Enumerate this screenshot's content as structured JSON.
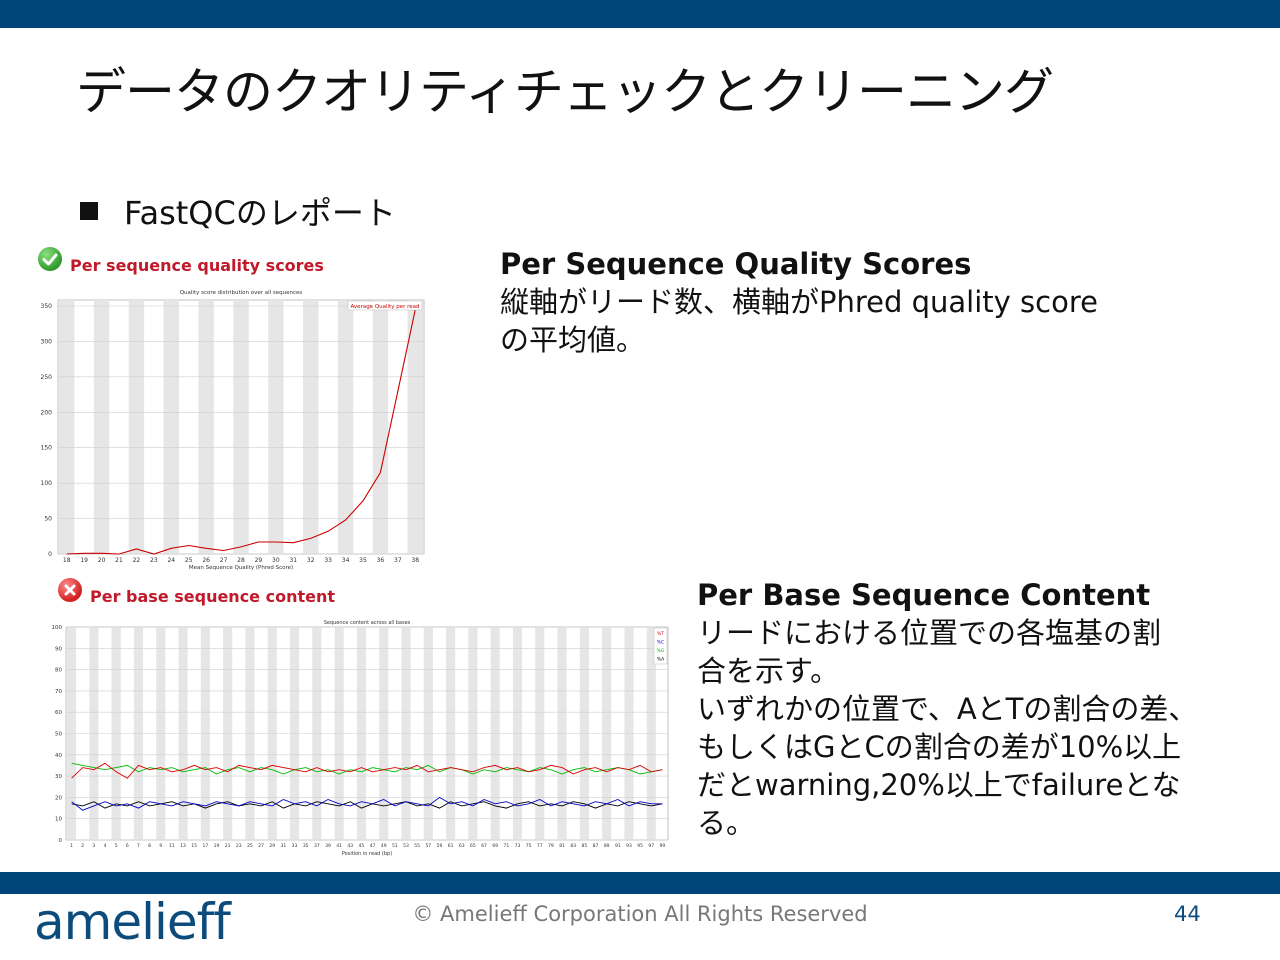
{
  "slide": {
    "title": "データのクオリティチェックとクリーニング",
    "bullet": "FastQCのレポート",
    "copyright": "© Amelieff Corporation All Rights Reserved",
    "page_number": "44",
    "logo_text": "amelieff",
    "colors": {
      "bar": "#00457a",
      "logo": "#0b4c7c",
      "chart_title": "#c0192a"
    }
  },
  "panel1": {
    "header": "Per sequence quality scores",
    "status_icon": "check-icon",
    "description_title": "Per Sequence Quality Scores",
    "description_lines": [
      "縦軸がリード数、横軸がPhred quality score",
      "の平均値。"
    ]
  },
  "panel2": {
    "header": "Per base sequence content",
    "status_icon": "cross-icon",
    "description_title": "Per Base Sequence Content",
    "description_lines": [
      "リードにおける位置での各塩基の割",
      "合を示す。",
      "いずれかの位置で、AとTの割合の差、",
      "もしくはGとCの割合の差が10%以上",
      "だとwarning,20%以上でfailureとな",
      "る。"
    ]
  },
  "chart_data": [
    {
      "type": "line",
      "title": "Quality score distribution over all sequences",
      "xlabel": "Mean Sequence Quality (Phred Score)",
      "ylabel": "",
      "x": [
        18,
        19,
        20,
        21,
        22,
        23,
        24,
        25,
        26,
        27,
        28,
        29,
        30,
        31,
        32,
        33,
        34,
        35,
        36,
        37,
        38
      ],
      "x_ticks": [
        "18",
        "19",
        "20",
        "21",
        "22",
        "23",
        "24",
        "25",
        "26",
        "27",
        "28",
        "29",
        "30",
        "31",
        "32",
        "33",
        "34",
        "35",
        "36",
        "37",
        "38"
      ],
      "y_ticks": [
        "0",
        "50",
        "100",
        "150",
        "200",
        "250",
        "300",
        "350"
      ],
      "ylim": [
        0,
        350
      ],
      "series": [
        {
          "name": "Average Quality per read",
          "color": "#cc0000",
          "values": [
            0,
            1,
            1,
            0,
            7,
            0,
            8,
            12,
            8,
            5,
            10,
            17,
            17,
            16,
            22,
            32,
            48,
            75,
            115,
            230,
            345
          ]
        }
      ],
      "grid": true,
      "legend_position": "top-right"
    },
    {
      "type": "line",
      "title": "Sequence content across all bases",
      "xlabel": "Position in read (bp)",
      "ylabel": "",
      "x_ticks": [
        "1",
        "2",
        "3",
        "4",
        "5",
        "6",
        "7",
        "8",
        "9",
        "11",
        "13",
        "15",
        "17",
        "19",
        "21",
        "23",
        "25",
        "27",
        "29",
        "31",
        "33",
        "35",
        "37",
        "39",
        "41",
        "43",
        "45",
        "47",
        "49",
        "51",
        "53",
        "55",
        "57",
        "59",
        "61",
        "63",
        "65",
        "67",
        "69",
        "71",
        "73",
        "75",
        "77",
        "79",
        "81",
        "83",
        "85",
        "87",
        "89",
        "91",
        "93",
        "95",
        "97",
        "99"
      ],
      "y_ticks": [
        "0",
        "10",
        "20",
        "30",
        "40",
        "50",
        "60",
        "70",
        "80",
        "90",
        "100"
      ],
      "ylim": [
        0,
        100
      ],
      "series": [
        {
          "name": "%T",
          "color": "#dd0000",
          "values": [
            29,
            34,
            33,
            36,
            32,
            29,
            35,
            33,
            34,
            32,
            33,
            35,
            33,
            34,
            32,
            35,
            34,
            33,
            35,
            34,
            33,
            32,
            34,
            32,
            33,
            32,
            34,
            32,
            33,
            34,
            33,
            35,
            32,
            33,
            34,
            33,
            32,
            34,
            35,
            33,
            34,
            32,
            33,
            35,
            34,
            31,
            33,
            34,
            32,
            34,
            33,
            35,
            32,
            33
          ]
        },
        {
          "name": "%C",
          "color": "#0000cc",
          "values": [
            18,
            14,
            16,
            18,
            16,
            17,
            15,
            18,
            17,
            16,
            18,
            17,
            16,
            18,
            17,
            16,
            18,
            17,
            16,
            19,
            17,
            18,
            16,
            19,
            17,
            16,
            18,
            17,
            19,
            16,
            18,
            17,
            16,
            20,
            17,
            18,
            16,
            19,
            17,
            18,
            16,
            17,
            19,
            16,
            18,
            17,
            16,
            18,
            17,
            19,
            16,
            18,
            17,
            17
          ]
        },
        {
          "name": "%G",
          "color": "#00bb00",
          "values": [
            36,
            35,
            34,
            33,
            34,
            35,
            32,
            34,
            33,
            34,
            32,
            33,
            34,
            31,
            33,
            34,
            32,
            34,
            33,
            31,
            33,
            34,
            32,
            33,
            31,
            33,
            32,
            34,
            33,
            32,
            34,
            33,
            35,
            32,
            34,
            33,
            31,
            33,
            32,
            34,
            33,
            32,
            34,
            33,
            31,
            33,
            34,
            32,
            33,
            34,
            33,
            31,
            32,
            33
          ]
        },
        {
          "name": "%A",
          "color": "#000000",
          "values": [
            17,
            16,
            18,
            15,
            17,
            16,
            18,
            16,
            17,
            18,
            16,
            17,
            15,
            17,
            18,
            16,
            17,
            16,
            18,
            15,
            17,
            16,
            18,
            17,
            16,
            18,
            15,
            17,
            16,
            17,
            18,
            16,
            17,
            15,
            18,
            16,
            17,
            18,
            16,
            15,
            17,
            18,
            16,
            17,
            16,
            18,
            17,
            15,
            17,
            16,
            18,
            17,
            16,
            17
          ]
        }
      ],
      "grid": true,
      "legend_position": "top-right"
    }
  ]
}
